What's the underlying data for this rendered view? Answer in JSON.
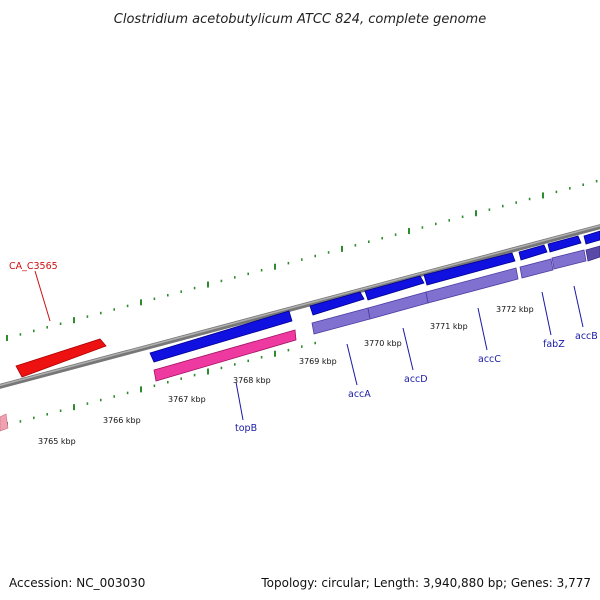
{
  "title": "Clostridium acetobutylicum ATCC 824, complete genome",
  "footer": {
    "accession": "Accession: NC_003030",
    "summary": "Topology: circular; Length: 3,940,880 bp; Genes: 3,777"
  },
  "colors": {
    "background": "#ffffff",
    "backbone": "#888888",
    "tick": "#2e8b2e",
    "gene_forward": "#1010e0",
    "gene_reverse_slate": "#8070d0",
    "gene_reverse_pink": "#ee3aa0",
    "gene_other": "#ee1111",
    "label_blue": "#1a1aa8",
    "label_red": "#cc1111"
  },
  "scale_labels": [
    "3765 kbp",
    "3766 kbp",
    "3767 kbp",
    "3768 kbp",
    "3769 kbp",
    "3770 kbp",
    "3771 kbp",
    "3772 kbp"
  ],
  "gene_labels": [
    {
      "name": "CA_C3565",
      "color": "red"
    },
    {
      "name": "topB",
      "color": "blue"
    },
    {
      "name": "accA",
      "color": "blue"
    },
    {
      "name": "accD",
      "color": "blue"
    },
    {
      "name": "accC",
      "color": "blue"
    },
    {
      "name": "fabZ",
      "color": "blue"
    },
    {
      "name": "accB",
      "color": "blue"
    }
  ]
}
